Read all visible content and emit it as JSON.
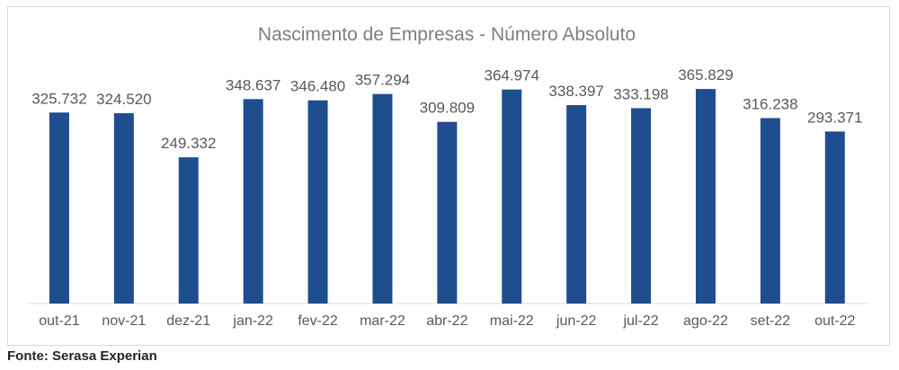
{
  "chart_data": {
    "type": "bar",
    "title": "Nascimento de Empresas - Número Absoluto",
    "xlabel": "",
    "ylabel": "",
    "ylim": [
      0,
      400000
    ],
    "grid": false,
    "categories": [
      "out-21",
      "nov-21",
      "dez-21",
      "jan-22",
      "fev-22",
      "mar-22",
      "abr-22",
      "mai-22",
      "jun-22",
      "jul-22",
      "ago-22",
      "set-22",
      "out-22"
    ],
    "values": [
      325732,
      324520,
      249332,
      348637,
      346480,
      357294,
      309809,
      364974,
      338397,
      333198,
      365829,
      316238,
      293371
    ],
    "data_labels": [
      "325.732",
      "324.520",
      "249.332",
      "348.637",
      "346.480",
      "357.294",
      "309.809",
      "364.974",
      "338.397",
      "333.198",
      "365.829",
      "316.238",
      "293.371"
    ],
    "bar_color": "#1f4e8f"
  },
  "source": "Fonte: Serasa Experian"
}
